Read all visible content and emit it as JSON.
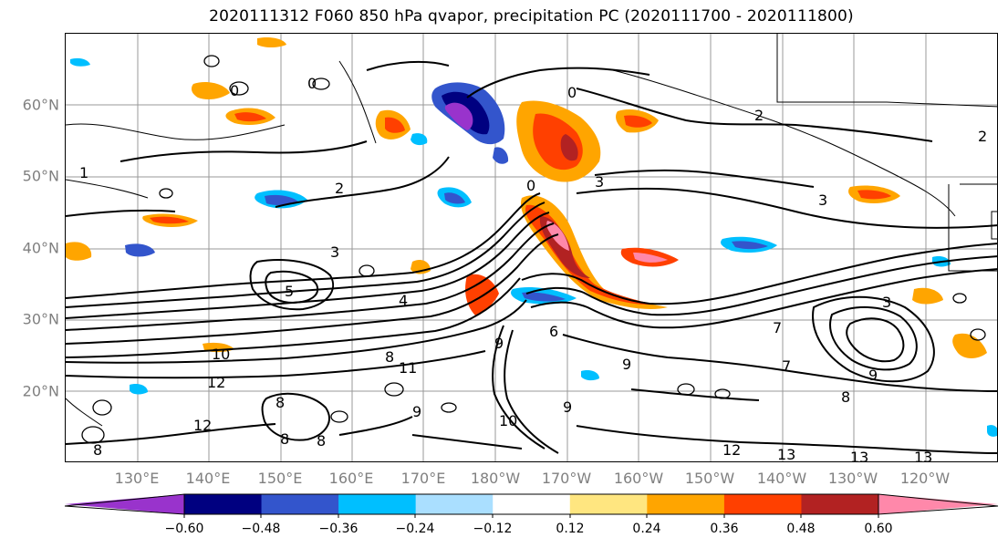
{
  "title": "2020111312 F060 850 hPa qvapor, precipitation PC (2020111700 - 2020111800)",
  "map": {
    "lat_labels": [
      "60°N",
      "50°N",
      "40°N",
      "30°N",
      "20°N"
    ],
    "lon_labels": [
      "130°E",
      "140°E",
      "150°E",
      "160°E",
      "170°E",
      "180°W",
      "170°W",
      "160°W",
      "150°W",
      "140°W",
      "130°W",
      "120°W"
    ],
    "contour_labels": [
      "0",
      "0",
      "0",
      "0",
      "2",
      "2",
      "1",
      "2",
      "3",
      "3",
      "3",
      "5",
      "4",
      "6",
      "7",
      "8",
      "9",
      "9",
      "9",
      "9",
      "8",
      "10",
      "10",
      "11",
      "12",
      "12",
      "12",
      "13",
      "13",
      "13",
      "7",
      "8",
      "9",
      "8",
      "8",
      "8",
      "3"
    ]
  },
  "colorbar": {
    "ticks": [
      "−0.60",
      "−0.48",
      "−0.36",
      "−0.24",
      "−0.12",
      "0.12",
      "0.24",
      "0.36",
      "0.48",
      "0.60"
    ],
    "colors": [
      "#9933cc",
      "#000080",
      "#3355cc",
      "#00bfff",
      "#aadfff",
      "#ffffff",
      "#ffe680",
      "#ffa500",
      "#ff4000",
      "#b22222",
      "#ff88aa"
    ]
  }
}
